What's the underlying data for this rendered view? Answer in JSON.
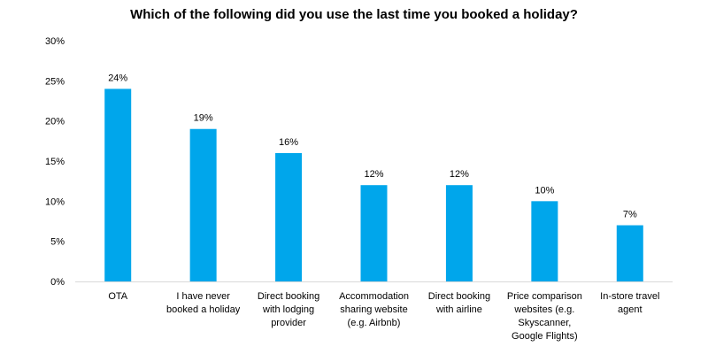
{
  "chart_data": {
    "type": "bar",
    "title": "Which of the following did you use the last time you booked a holiday?",
    "xlabel": "",
    "ylabel": "",
    "ylim": [
      0,
      30
    ],
    "yticks": [
      "0%",
      "5%",
      "10%",
      "15%",
      "20%",
      "25%",
      "30%"
    ],
    "grid": false,
    "legend": "none",
    "bar_color": "#00A6EB",
    "categories": [
      [
        "OTA"
      ],
      [
        "I have never",
        "booked a holiday"
      ],
      [
        "Direct booking",
        "with lodging",
        "provider"
      ],
      [
        "Accommodation",
        "sharing website",
        "(e.g. Airbnb)"
      ],
      [
        "Direct booking",
        "with airline"
      ],
      [
        "Price comparison",
        "websites (e.g.",
        "Skyscanner,",
        "Google Flights)"
      ],
      [
        "In-store travel",
        "agent"
      ]
    ],
    "values": [
      24,
      19,
      16,
      12,
      12,
      10,
      7
    ],
    "data_labels": [
      "24%",
      "19%",
      "16%",
      "12%",
      "12%",
      "10%",
      "7%"
    ]
  }
}
